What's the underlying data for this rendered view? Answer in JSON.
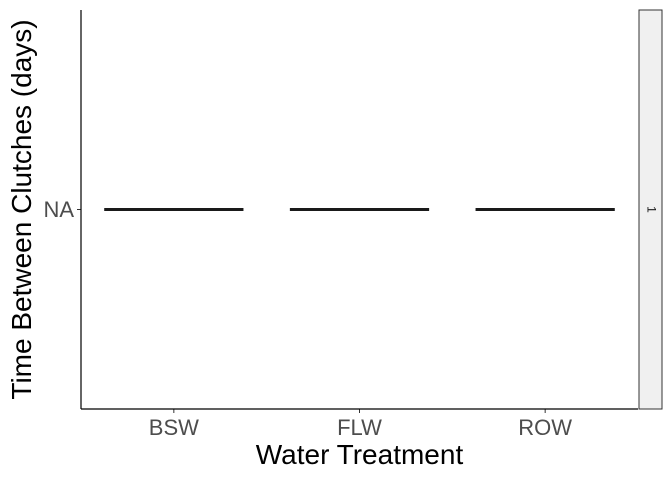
{
  "chart_data": {
    "type": "boxplot",
    "title": "",
    "xlabel": "Water Treatment",
    "ylabel": "Time Between Clutches (days)",
    "categories": [
      "BSW",
      "FLW",
      "ROW"
    ],
    "y_ticks": [
      "NA"
    ],
    "values": [
      "NA",
      "NA",
      "NA"
    ],
    "facet": {
      "position": "right",
      "label": "1"
    },
    "grid": false,
    "legend": "none"
  }
}
